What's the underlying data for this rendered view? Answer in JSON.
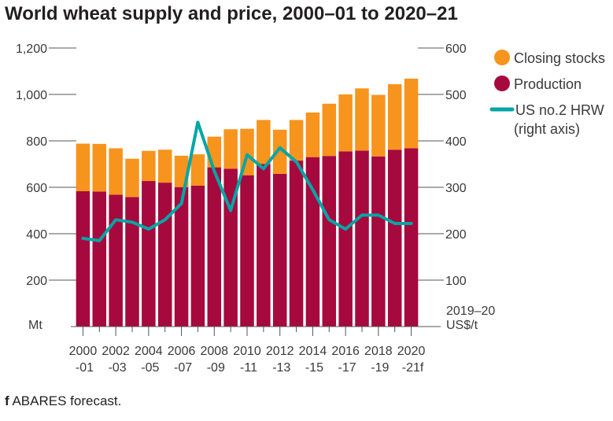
{
  "title": "World wheat supply and price, 2000–01 to 2020–21",
  "footnote": {
    "marker": "f",
    "text": "ABARES forecast."
  },
  "legend": {
    "stocks": "Closing stocks",
    "production": "Production",
    "price_line1": "US no.2 HRW",
    "price_line2": "(right axis)"
  },
  "axis": {
    "left_unit": "Mt",
    "right_unit_line1": "2019–20",
    "right_unit_line2": "US$/t"
  },
  "colors": {
    "stocks": "#f7941d",
    "production": "#a6093d",
    "price": "#00a6a6"
  },
  "chart_data": {
    "type": "bar",
    "title": "World wheat supply and price, 2000–01 to 2020–21",
    "stacked": true,
    "categories": [
      "2000-01",
      "2001-02",
      "2002-03",
      "2003-04",
      "2004-05",
      "2005-06",
      "2006-07",
      "2007-08",
      "2008-09",
      "2009-10",
      "2010-11",
      "2011-12",
      "2012-13",
      "2013-14",
      "2014-15",
      "2015-16",
      "2016-17",
      "2017-18",
      "2018-19",
      "2019-20",
      "2020-21"
    ],
    "tick_labels_top": [
      "2000",
      "2002",
      "2004",
      "2006",
      "2008",
      "2010",
      "2012",
      "2014",
      "2016",
      "2018",
      "2020"
    ],
    "tick_labels_bottom": [
      "-01",
      "-03",
      "-05",
      "-07",
      "-09",
      "-11",
      "-13",
      "-15",
      "-17",
      "-19",
      "-21f"
    ],
    "series": [
      {
        "name": "Production",
        "values": [
          583,
          582,
          568,
          558,
          627,
          620,
          601,
          607,
          686,
          680,
          652,
          700,
          658,
          715,
          730,
          735,
          755,
          758,
          733,
          762,
          768
        ]
      },
      {
        "name": "Closing stocks",
        "values": [
          205,
          205,
          200,
          165,
          130,
          142,
          135,
          135,
          132,
          170,
          200,
          190,
          190,
          175,
          192,
          225,
          245,
          268,
          265,
          282,
          300
        ]
      },
      {
        "name": "US no.2 HRW",
        "axis": "right",
        "values": [
          190,
          185,
          230,
          225,
          210,
          230,
          265,
          440,
          335,
          250,
          370,
          340,
          385,
          355,
          295,
          230,
          210,
          240,
          240,
          222,
          222
        ]
      }
    ],
    "left_axis": {
      "range": [
        0,
        1200
      ],
      "ticks": [
        200,
        400,
        600,
        800,
        1000,
        1200
      ],
      "tick_labels": [
        "200",
        "400",
        "600",
        "800",
        "1,000",
        "1,200"
      ]
    },
    "right_axis": {
      "range": [
        0,
        600
      ],
      "ticks": [
        100,
        200,
        300,
        400,
        500,
        600
      ],
      "tick_labels": [
        "100",
        "200",
        "300",
        "400",
        "500",
        "600"
      ]
    },
    "legend_position": "right",
    "grid": false
  }
}
